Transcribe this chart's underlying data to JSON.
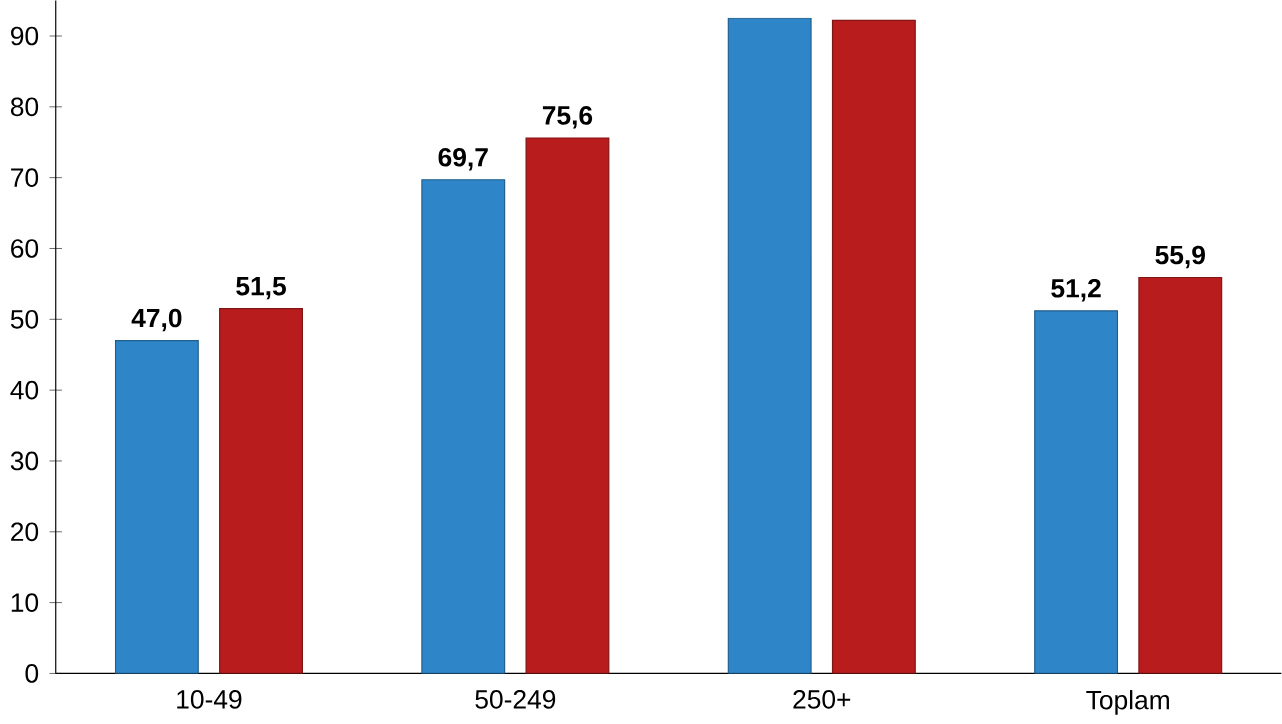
{
  "chart_data": {
    "type": "bar",
    "categories": [
      "10-49",
      "50-249",
      "250+",
      "Toplam"
    ],
    "series": [
      {
        "color": "#2e86c8",
        "values": [
          47.0,
          69.7,
          92.5,
          51.2
        ],
        "value_labels": [
          "47,0",
          "69,7",
          null,
          "51,2"
        ]
      },
      {
        "color": "#b81c1c",
        "values": [
          51.5,
          75.6,
          92.2,
          55.9
        ],
        "value_labels": [
          "51,5",
          "75,6",
          null,
          "55,9"
        ]
      }
    ],
    "ylim": [
      0,
      95
    ],
    "yticks": [
      0,
      10,
      20,
      30,
      40,
      50,
      60,
      70,
      80,
      90
    ],
    "grid": false
  }
}
